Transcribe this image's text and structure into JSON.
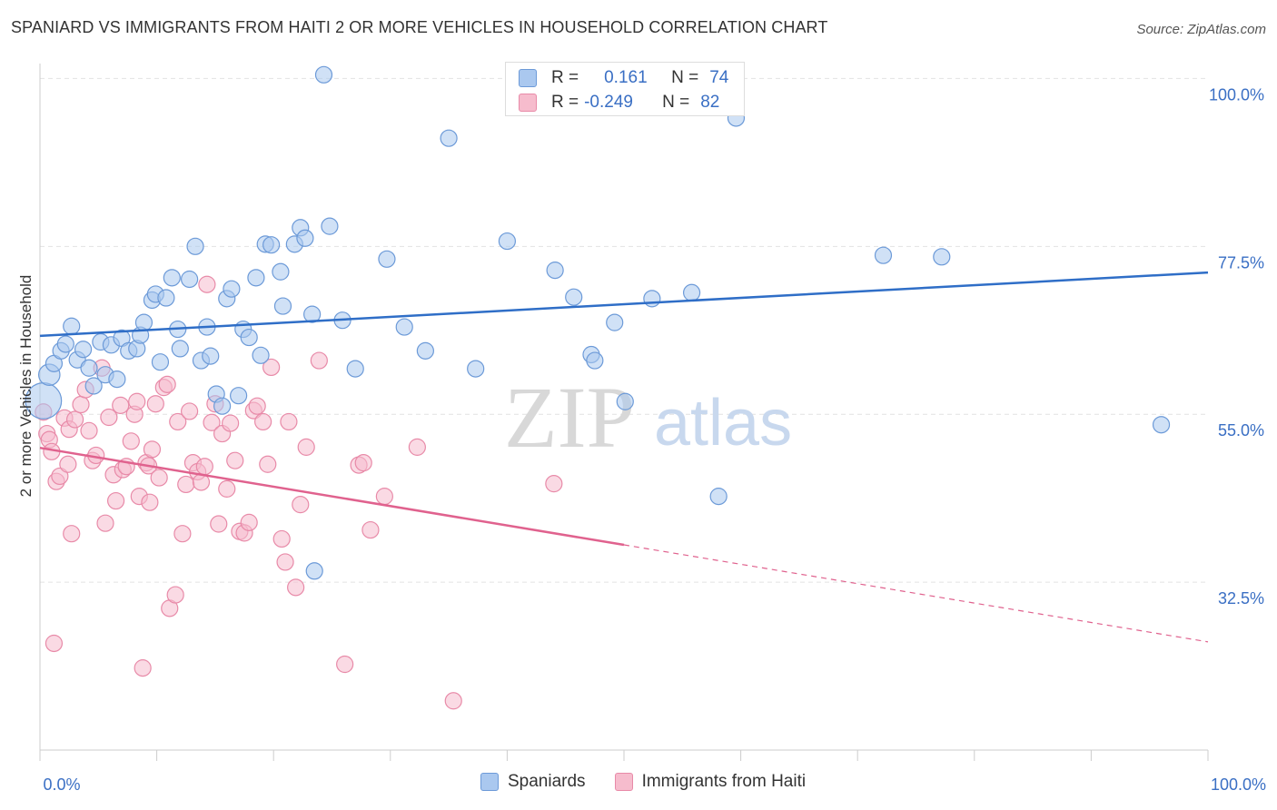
{
  "title": "SPANIARD VS IMMIGRANTS FROM HAITI 2 OR MORE VEHICLES IN HOUSEHOLD CORRELATION CHART",
  "source": "Source: ZipAtlas.com",
  "watermark": {
    "zip": "ZIP",
    "atlas": "atlas"
  },
  "colors": {
    "blue_fill": "#aac8ef",
    "blue_stroke": "#6c9ad8",
    "blue_line": "#2f6ec7",
    "pink_fill": "#f6bccd",
    "pink_stroke": "#e88aa8",
    "pink_line": "#e0628e",
    "axis_label": "#3a6fc4"
  },
  "stats": {
    "r_label": "R =",
    "n_label": "N =",
    "rows": [
      {
        "series": "Spaniards",
        "r": "0.161",
        "n": "74"
      },
      {
        "series": "Immigrants from Haiti",
        "r": "-0.249",
        "n": "82"
      }
    ]
  },
  "legend": [
    "Spaniards",
    "Immigrants from Haiti"
  ],
  "chart_data": {
    "type": "scatter",
    "title": "SPANIARD VS IMMIGRANTS FROM HAITI 2 OR MORE VEHICLES IN HOUSEHOLD CORRELATION CHART",
    "xlabel": "",
    "ylabel": "2 or more Vehicles in Household",
    "xlim": [
      0,
      100
    ],
    "ylim": [
      10,
      102
    ],
    "x_tick_labels": [
      "0.0%",
      "100.0%"
    ],
    "y_ticks": [
      32.5,
      55.0,
      77.5,
      100.0
    ],
    "y_tick_labels": [
      "32.5%",
      "55.0%",
      "77.5%",
      "100.0%"
    ],
    "grid": true,
    "legend_position": "bottom",
    "series": [
      {
        "name": "Spaniards",
        "trend": {
          "x": [
            0,
            100
          ],
          "y": [
            65.5,
            74.0
          ]
        },
        "points": [
          [
            0.3,
            56.8,
            2.2
          ],
          [
            0.8,
            60.3,
            1.3
          ],
          [
            1.2,
            61.8,
            1.0
          ],
          [
            1.8,
            63.5,
            1.0
          ],
          [
            2.2,
            64.4,
            1.0
          ],
          [
            2.7,
            66.8,
            1.0
          ],
          [
            3.2,
            62.3,
            1.0
          ],
          [
            3.7,
            63.7,
            1.0
          ],
          [
            4.2,
            61.2,
            1.0
          ],
          [
            4.6,
            58.8,
            1.0
          ],
          [
            5.2,
            64.7,
            1.0
          ],
          [
            5.6,
            60.3,
            1.0
          ],
          [
            6.1,
            64.3,
            1.0
          ],
          [
            6.6,
            59.7,
            1.0
          ],
          [
            7.0,
            65.2,
            1.0
          ],
          [
            7.6,
            63.5,
            1.0
          ],
          [
            8.3,
            63.8,
            1.0
          ],
          [
            8.6,
            65.6,
            1.0
          ],
          [
            8.9,
            67.3,
            1.0
          ],
          [
            9.6,
            70.3,
            1.0
          ],
          [
            9.9,
            71.1,
            1.0
          ],
          [
            10.3,
            62.0,
            1.0
          ],
          [
            10.8,
            70.6,
            1.0
          ],
          [
            11.3,
            73.3,
            1.0
          ],
          [
            11.8,
            66.4,
            1.0
          ],
          [
            12.0,
            63.8,
            1.0
          ],
          [
            12.8,
            73.1,
            1.0
          ],
          [
            13.3,
            77.5,
            1.0
          ],
          [
            13.8,
            62.2,
            1.0
          ],
          [
            14.3,
            66.7,
            1.0
          ],
          [
            14.6,
            62.8,
            1.0
          ],
          [
            15.1,
            57.7,
            1.0
          ],
          [
            15.6,
            56.1,
            1.0
          ],
          [
            16.0,
            70.5,
            1.0
          ],
          [
            16.4,
            71.8,
            1.0
          ],
          [
            17.0,
            57.5,
            1.0
          ],
          [
            17.4,
            66.4,
            1.0
          ],
          [
            17.9,
            65.3,
            1.0
          ],
          [
            18.5,
            73.3,
            1.0
          ],
          [
            18.9,
            62.9,
            1.0
          ],
          [
            19.3,
            77.8,
            1.0
          ],
          [
            19.8,
            77.7,
            1.0
          ],
          [
            20.6,
            74.1,
            1.0
          ],
          [
            20.8,
            69.5,
            1.0
          ],
          [
            21.8,
            77.8,
            1.0
          ],
          [
            22.3,
            80.0,
            1.0
          ],
          [
            22.7,
            78.6,
            1.0
          ],
          [
            23.3,
            68.4,
            1.0
          ],
          [
            23.5,
            34.0,
            1.0
          ],
          [
            24.3,
            100.5,
            1.0
          ],
          [
            24.8,
            80.2,
            1.0
          ],
          [
            25.9,
            67.6,
            1.0
          ],
          [
            27.0,
            61.1,
            1.0
          ],
          [
            29.7,
            75.8,
            1.0
          ],
          [
            31.2,
            66.7,
            1.0
          ],
          [
            33.0,
            63.5,
            1.0
          ],
          [
            35.0,
            92.0,
            1.0
          ],
          [
            37.3,
            61.1,
            1.0
          ],
          [
            40.0,
            78.2,
            1.0
          ],
          [
            44.1,
            74.3,
            1.0
          ],
          [
            45.7,
            70.7,
            1.0
          ],
          [
            47.2,
            63.0,
            1.0
          ],
          [
            47.5,
            62.2,
            1.0
          ],
          [
            49.2,
            67.3,
            1.0
          ],
          [
            50.1,
            56.7,
            1.0
          ],
          [
            52.4,
            70.5,
            1.0
          ],
          [
            55.8,
            71.3,
            1.0
          ],
          [
            58.1,
            44.0,
            1.0
          ],
          [
            59.6,
            94.7,
            1.0
          ],
          [
            72.2,
            76.3,
            1.0
          ],
          [
            77.2,
            76.1,
            1.0
          ],
          [
            96.0,
            53.6,
            1.0
          ]
        ]
      },
      {
        "name": "Immigrants from Haiti",
        "trend": {
          "x": [
            0,
            50
          ],
          "y": [
            50.5,
            37.5
          ],
          "dashed_to": {
            "x": 100,
            "y": 24.5
          }
        },
        "points": [
          [
            0.3,
            55.3,
            1.0
          ],
          [
            0.6,
            52.4,
            1.0
          ],
          [
            0.8,
            51.6,
            1.0
          ],
          [
            1.0,
            50.0,
            1.0
          ],
          [
            1.2,
            24.3,
            1.0
          ],
          [
            1.4,
            46.0,
            1.0
          ],
          [
            1.7,
            46.7,
            1.0
          ],
          [
            2.1,
            54.5,
            1.0
          ],
          [
            2.4,
            48.3,
            1.0
          ],
          [
            2.5,
            53.0,
            1.0
          ],
          [
            2.7,
            39.0,
            1.0
          ],
          [
            3.0,
            54.3,
            1.0
          ],
          [
            3.5,
            56.3,
            1.0
          ],
          [
            3.9,
            58.3,
            1.0
          ],
          [
            4.2,
            52.8,
            1.0
          ],
          [
            4.5,
            48.8,
            1.0
          ],
          [
            4.8,
            49.5,
            1.0
          ],
          [
            5.3,
            61.2,
            1.0
          ],
          [
            5.6,
            40.4,
            1.0
          ],
          [
            5.9,
            54.6,
            1.0
          ],
          [
            6.3,
            46.9,
            1.0
          ],
          [
            6.5,
            43.4,
            1.0
          ],
          [
            6.9,
            56.2,
            1.0
          ],
          [
            7.1,
            47.6,
            1.0
          ],
          [
            7.4,
            48.0,
            1.0
          ],
          [
            7.8,
            51.4,
            1.0
          ],
          [
            8.1,
            55.0,
            1.0
          ],
          [
            8.3,
            56.7,
            1.0
          ],
          [
            8.5,
            44.0,
            1.0
          ],
          [
            8.8,
            21.0,
            1.0
          ],
          [
            9.1,
            48.5,
            1.0
          ],
          [
            9.3,
            48.1,
            1.0
          ],
          [
            9.4,
            43.2,
            1.0
          ],
          [
            9.6,
            50.3,
            1.0
          ],
          [
            9.9,
            56.4,
            1.0
          ],
          [
            10.2,
            46.5,
            1.0
          ],
          [
            10.6,
            58.6,
            1.0
          ],
          [
            10.9,
            59.0,
            1.0
          ],
          [
            11.1,
            29.0,
            1.0
          ],
          [
            11.6,
            30.8,
            1.0
          ],
          [
            11.8,
            54.0,
            1.0
          ],
          [
            12.2,
            39.0,
            1.0
          ],
          [
            12.5,
            45.6,
            1.0
          ],
          [
            12.8,
            55.4,
            1.0
          ],
          [
            13.1,
            48.5,
            1.0
          ],
          [
            13.5,
            47.3,
            1.0
          ],
          [
            13.8,
            45.9,
            1.0
          ],
          [
            14.1,
            48.0,
            1.0
          ],
          [
            14.3,
            72.4,
            1.0
          ],
          [
            14.7,
            53.9,
            1.0
          ],
          [
            15.0,
            56.4,
            1.0
          ],
          [
            15.3,
            40.3,
            1.0
          ],
          [
            15.6,
            52.4,
            1.0
          ],
          [
            16.0,
            45.0,
            1.0
          ],
          [
            16.3,
            53.8,
            1.0
          ],
          [
            16.7,
            48.8,
            1.0
          ],
          [
            17.1,
            39.3,
            1.0
          ],
          [
            17.5,
            39.1,
            1.0
          ],
          [
            17.9,
            40.5,
            1.0
          ],
          [
            18.3,
            55.5,
            1.0
          ],
          [
            18.6,
            56.1,
            1.0
          ],
          [
            19.1,
            54.0,
            1.0
          ],
          [
            19.5,
            48.3,
            1.0
          ],
          [
            19.8,
            61.3,
            1.0
          ],
          [
            20.7,
            38.3,
            1.0
          ],
          [
            21.0,
            35.2,
            1.0
          ],
          [
            21.3,
            54.0,
            1.0
          ],
          [
            21.9,
            31.8,
            1.0
          ],
          [
            22.3,
            42.9,
            1.0
          ],
          [
            22.8,
            50.6,
            1.0
          ],
          [
            23.9,
            62.2,
            1.0
          ],
          [
            26.1,
            21.5,
            1.0
          ],
          [
            27.3,
            48.2,
            1.0
          ],
          [
            27.7,
            48.5,
            1.0
          ],
          [
            28.3,
            39.5,
            1.0
          ],
          [
            29.5,
            44.0,
            1.0
          ],
          [
            32.3,
            50.6,
            1.0
          ],
          [
            35.4,
            16.6,
            1.0
          ],
          [
            44.0,
            45.7,
            1.0
          ]
        ]
      }
    ]
  }
}
